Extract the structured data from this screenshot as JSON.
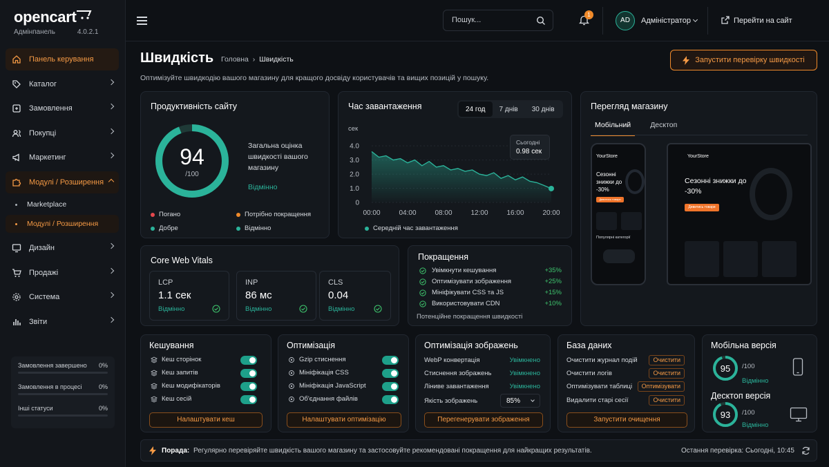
{
  "app": {
    "brand": "opencart",
    "panel_label": "Адмінпанель",
    "version": "4.0.2.1"
  },
  "nav": {
    "dashboard": "Панель керування",
    "catalog": "Каталог",
    "orders": "Замовлення",
    "purchases": "Покупці",
    "marketing": "Маркетинг",
    "modules": "Модулі / Розширення",
    "marketplace": "Marketplace",
    "modules_sub": "Модулі / Розширення",
    "design": "Дизайн",
    "sales": "Продажі",
    "system": "Система",
    "reports": "Звіти"
  },
  "order_status": [
    {
      "label": "Замовлення завершено",
      "value": "0%"
    },
    {
      "label": "Замовлення в процесі",
      "value": "0%"
    },
    {
      "label": "Інші статуси",
      "value": "0%"
    }
  ],
  "topbar": {
    "search_placeholder": "Пошук...",
    "notifications": "1",
    "avatar": "AD",
    "user": "Адміністратор",
    "visit_site": "Перейти на сайт"
  },
  "page": {
    "title": "Швидкість",
    "crumb_home": "Головна",
    "crumb_current": "Швидкість",
    "subtitle": "Оптимізуйте швидкодію вашого магазину для кращого досвіду користувачів та вищих позицій у пошуку.",
    "run_button": "Запустити перевірку швидкості"
  },
  "performance": {
    "title": "Продуктивність сайту",
    "score": "94",
    "score_max": "/100",
    "score_fraction": 0.94,
    "desc": "Загальна оцінка швидкості вашого магазину",
    "status": "Відмінно",
    "legend": [
      {
        "label": "Погано",
        "color": "#e5484d"
      },
      {
        "label": "Потрібно покращення",
        "color": "#f08a2a"
      },
      {
        "label": "Добре",
        "color": "#2bb39a"
      },
      {
        "label": "Відмінно",
        "color": "#2bb39a"
      }
    ]
  },
  "load_time": {
    "title": "Час завантаження",
    "ranges": [
      "24 год",
      "7 днів",
      "30 днів"
    ],
    "active_range": "24 год",
    "tooltip_label": "Сьогодні",
    "tooltip_value": "0.98 сек",
    "legend": "Середній час завантаження"
  },
  "chart_data": {
    "type": "area",
    "ylabel": "сек",
    "yticks": [
      "4.0",
      "3.0",
      "2.0",
      "1.0",
      "0"
    ],
    "ylim": [
      0,
      4.4
    ],
    "xticks": [
      "00:00",
      "04:00",
      "08:00",
      "12:00",
      "16:00",
      "20:00"
    ],
    "x": [
      0,
      1,
      2,
      3,
      4,
      5,
      6,
      7,
      8,
      9,
      10,
      11,
      12,
      13,
      14,
      15,
      16,
      17,
      18,
      19,
      20,
      21,
      22,
      23,
      24,
      25
    ],
    "series": [
      {
        "values": [
          3.6,
          3.2,
          3.3,
          3.0,
          3.1,
          2.8,
          3.0,
          2.6,
          2.9,
          2.5,
          2.6,
          2.3,
          2.4,
          2.2,
          2.3,
          2.0,
          1.9,
          2.1,
          1.7,
          1.9,
          1.6,
          1.8,
          1.5,
          1.4,
          1.2,
          0.98
        ]
      }
    ],
    "color": "#2bb39a",
    "grid": true
  },
  "preview": {
    "title": "Перегляд магазину",
    "tab_mobile": "Мобільний",
    "tab_desktop": "Десктоп",
    "store_name": "YourStore",
    "hero": "Сезонні знижки до -30%",
    "hero_btn": "Дивитись товари",
    "categories": "Популярні категорії"
  },
  "vitals": {
    "title": "Core Web Vitals",
    "items": [
      {
        "name": "LCP",
        "value": "1.1 сек",
        "status": "Відмінно"
      },
      {
        "name": "INP",
        "value": "86 мс",
        "status": "Відмінно"
      },
      {
        "name": "CLS",
        "value": "0.04",
        "status": "Відмінно"
      }
    ]
  },
  "improvements": {
    "title": "Покращення",
    "items": [
      {
        "label": "Увімкнути кешування",
        "value": "+35%"
      },
      {
        "label": "Оптимізувати зображення",
        "value": "+25%"
      },
      {
        "label": "Мініфікувати CSS та JS",
        "value": "+15%"
      },
      {
        "label": "Використовувати CDN",
        "value": "+10%"
      }
    ],
    "footer": "Потенційне покращення швидкості"
  },
  "cache": {
    "title": "Кешування",
    "items": [
      "Кеш сторінок",
      "Кеш запитів",
      "Кеш модифікаторів",
      "Кеш сесій"
    ],
    "button": "Налаштувати кеш"
  },
  "optimization": {
    "title": "Оптимізація",
    "items": [
      "Gzip стиснення",
      "Мініфікація CSS",
      "Мініфікація JavaScript",
      "Об'єднання файлів"
    ],
    "button": "Налаштувати оптимізацію"
  },
  "image_opt": {
    "title": "Оптимізація зображень",
    "items": [
      {
        "label": "WebP конвертація",
        "value": "Увімкнено"
      },
      {
        "label": "Стиснення зображень",
        "value": "Увімкнено"
      },
      {
        "label": "Ліниве завантаження",
        "value": "Увімкнено"
      }
    ],
    "quality_label": "Якість зображень",
    "quality_value": "85%",
    "button": "Перегенерувати зображення"
  },
  "database": {
    "title": "База даних",
    "items": [
      {
        "label": "Очистити журнал подій",
        "action": "Очистити"
      },
      {
        "label": "Очистити логів",
        "action": "Очистити"
      },
      {
        "label": "Оптимізувати таблиці",
        "action": "Оптимізувати"
      },
      {
        "label": "Видалити старі сесії",
        "action": "Очистити"
      }
    ],
    "button": "Запустити очищення"
  },
  "devices": {
    "mobile_title": "Мобільна версія",
    "mobile_score": "95",
    "mobile_fraction": 0.95,
    "desktop_title": "Десктоп версія",
    "desktop_score": "93",
    "desktop_fraction": 0.93,
    "max": "/100",
    "status": "Відмінно"
  },
  "tip": {
    "label": "Порада:",
    "text": "Регулярно перевіряйте швидкість вашого магазину та застосовуйте рекомендовані покращення для найкращих результатів.",
    "last_check": "Остання перевірка: Сьогодні, 10:45"
  }
}
